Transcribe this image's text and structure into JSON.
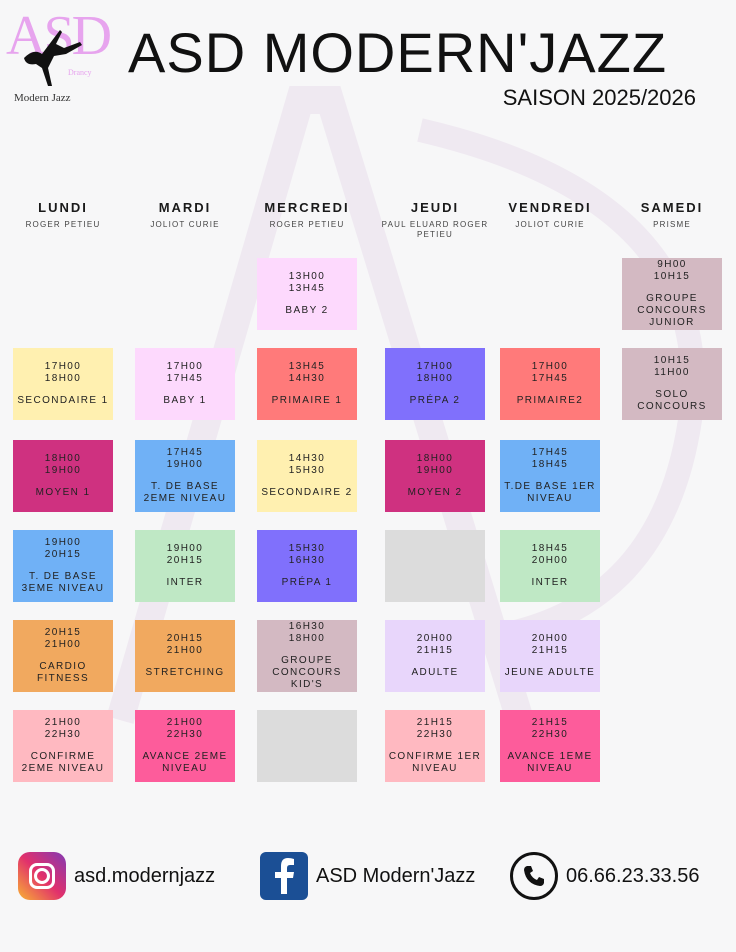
{
  "logo": {
    "text": "ASD",
    "sub": "Drancy",
    "caption": "Modern Jazz"
  },
  "header": {
    "title": "ASD MODERN'JAZZ",
    "season": "SAISON 2025/2026"
  },
  "days": [
    {
      "name": "LUNDI",
      "location": "ROGER PETIEU",
      "classes": [
        {
          "row": 1,
          "start": "17H00",
          "end": "18H00",
          "name": "SECONDAIRE 1",
          "color": "#fff0b0"
        },
        {
          "row": 2,
          "start": "18H00",
          "end": "19H00",
          "name": "MOYEN 1",
          "color": "#cf3180"
        },
        {
          "row": 3,
          "start": "19H00",
          "end": "20H15",
          "name": "T. DE BASE 3EME NIVEAU",
          "color": "#70b1f6"
        },
        {
          "row": 4,
          "start": "20H15",
          "end": "21H00",
          "name": "CARDIO FITNESS",
          "color": "#f1a95f"
        },
        {
          "row": 5,
          "start": "21H00",
          "end": "22H30",
          "name": "CONFIRME 2EME NIVEAU",
          "color": "#ffb9c1"
        }
      ]
    },
    {
      "name": "MARDI",
      "location": "JOLIOT CURIE",
      "classes": [
        {
          "row": 1,
          "start": "17H00",
          "end": "17H45",
          "name": "BABY 1",
          "color": "#fdd9fd"
        },
        {
          "row": 2,
          "start": "17H45",
          "end": "19H00",
          "name": "T. DE BASE 2EME NIVEAU",
          "color": "#70b1f6"
        },
        {
          "row": 3,
          "start": "19H00",
          "end": "20H15",
          "name": "INTER",
          "color": "#bfe8c5"
        },
        {
          "row": 4,
          "start": "20H15",
          "end": "21H00",
          "name": "STRETCHING",
          "color": "#f1a95f"
        },
        {
          "row": 5,
          "start": "21H00",
          "end": "22H30",
          "name": "AVANCE 2EME NIVEAU",
          "color": "#fd5c9b"
        }
      ]
    },
    {
      "name": "MERCREDI",
      "location": "ROGER PETIEU",
      "classes": [
        {
          "row": 0,
          "start": "13H00",
          "end": "13H45",
          "name": "BABY 2",
          "color": "#fdd9fd"
        },
        {
          "row": 1,
          "start": "13H45",
          "end": "14H30",
          "name": "PRIMAIRE 1",
          "color": "#ff7a7a"
        },
        {
          "row": 2,
          "start": "14H30",
          "end": "15H30",
          "name": "SECONDAIRE 2",
          "color": "#fff0b0"
        },
        {
          "row": 3,
          "start": "15H30",
          "end": "16H30",
          "name": "PRÉPA 1",
          "color": "#8070fc"
        },
        {
          "row": 4,
          "start": "16H30",
          "end": "18H00",
          "name": "GROUPE CONCOURS KID'S",
          "color": "#d3b9c2"
        },
        {
          "row": 5,
          "start": "",
          "end": "",
          "name": "",
          "color": "#dcdcdc"
        }
      ]
    },
    {
      "name": "JEUDI",
      "location": "PAUL ELUARD ROGER PETIEU",
      "classes": [
        {
          "row": 1,
          "start": "17H00",
          "end": "18H00",
          "name": "PRÉPA 2",
          "color": "#8070fc"
        },
        {
          "row": 2,
          "start": "18H00",
          "end": "19H00",
          "name": "MOYEN 2",
          "color": "#cf3180"
        },
        {
          "row": 3,
          "start": "",
          "end": "",
          "name": "",
          "color": "#dcdcdc"
        },
        {
          "row": 4,
          "start": "20H00",
          "end": "21H15",
          "name": "ADULTE",
          "color": "#e8d6fb"
        },
        {
          "row": 5,
          "start": "21H15",
          "end": "22H30",
          "name": "CONFIRME 1ER NIVEAU",
          "color": "#ffb9c1"
        }
      ]
    },
    {
      "name": "VENDREDI",
      "location": "JOLIOT CURIE",
      "classes": [
        {
          "row": 1,
          "start": "17H00",
          "end": "17H45",
          "name": "PRIMAIRE2",
          "color": "#ff7a7a"
        },
        {
          "row": 2,
          "start": "17H45",
          "end": "18H45",
          "name": "T.DE BASE 1ER NIVEAU",
          "color": "#70b1f6"
        },
        {
          "row": 3,
          "start": "18H45",
          "end": "20H00",
          "name": "INTER",
          "color": "#bfe8c5"
        },
        {
          "row": 4,
          "start": "20H00",
          "end": "21H15",
          "name": "JEUNE ADULTE",
          "color": "#e8d6fb"
        },
        {
          "row": 5,
          "start": "21H15",
          "end": "22H30",
          "name": "AVANCE 1EME NIVEAU",
          "color": "#fd5c9b"
        }
      ]
    },
    {
      "name": "SAMEDI",
      "location": "PRISME",
      "classes": [
        {
          "row": 0,
          "start": "9H00",
          "end": "10H15",
          "name": "GROUPE CONCOURS JUNIOR",
          "color": "#d3b9c2"
        },
        {
          "row": 1,
          "start": "10H15",
          "end": "11H00",
          "name": "SOLO CONCOURS",
          "color": "#d3b9c2"
        }
      ]
    }
  ],
  "footer": {
    "instagram": "asd.modernjazz",
    "facebook": "ASD Modern'Jazz",
    "phone": "06.66.23.33.56"
  }
}
